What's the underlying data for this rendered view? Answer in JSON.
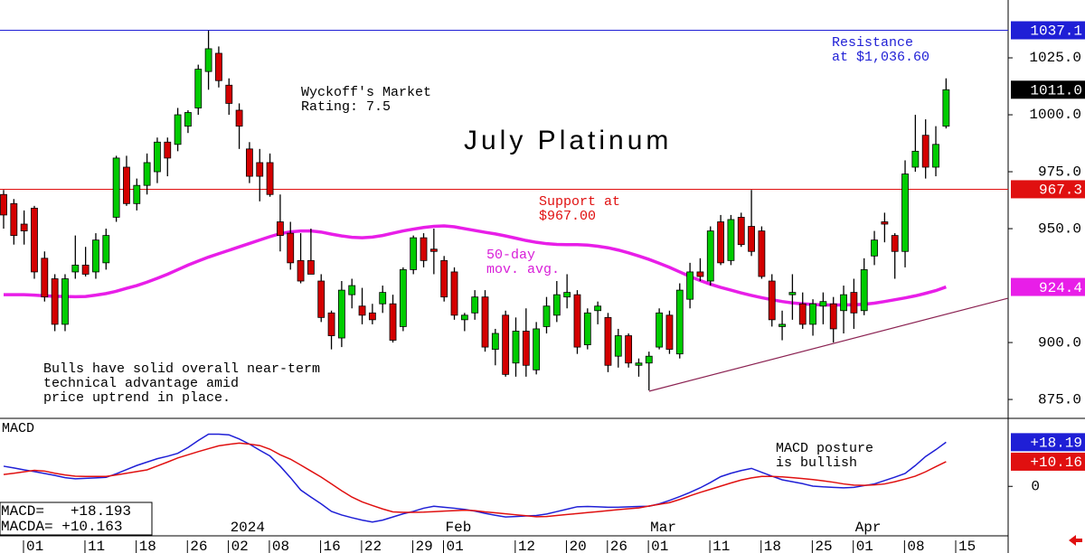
{
  "chart_data": [
    {
      "type": "candlestick",
      "title": "July Platinum",
      "categories": [
        null,
        null,
        null,
        "01",
        null,
        null,
        null,
        null,
        null,
        "11",
        null,
        null,
        null,
        null,
        "18",
        null,
        null,
        null,
        null,
        "26",
        null,
        null,
        null,
        "02",
        null,
        null,
        null,
        "08",
        null,
        null,
        null,
        null,
        "16",
        null,
        null,
        null,
        "22",
        null,
        null,
        null,
        null,
        "29",
        null,
        null,
        "01",
        null,
        null,
        null,
        null,
        null,
        null,
        "12",
        null,
        null,
        null,
        null,
        "20",
        null,
        null,
        null,
        "26",
        null,
        null,
        null,
        "01",
        null,
        null,
        null,
        null,
        null,
        "11",
        null,
        null,
        null,
        null,
        "18",
        null,
        null,
        null,
        null,
        "25",
        null,
        null,
        null,
        "01",
        null,
        null,
        null,
        null,
        "08",
        null,
        null,
        null,
        null,
        "15",
        null,
        null,
        null,
        null
      ],
      "month_labels": [
        null,
        null,
        null,
        null,
        null,
        null,
        null,
        null,
        null,
        null,
        null,
        null,
        null,
        null,
        null,
        null,
        null,
        null,
        null,
        null,
        null,
        null,
        null,
        "2024",
        null,
        null,
        null,
        null,
        null,
        null,
        null,
        null,
        null,
        null,
        null,
        null,
        null,
        null,
        null,
        null,
        null,
        null,
        null,
        null,
        "Feb",
        null,
        null,
        null,
        null,
        null,
        null,
        null,
        null,
        null,
        null,
        null,
        null,
        null,
        null,
        null,
        null,
        null,
        null,
        null,
        "Mar",
        null,
        null,
        null,
        null,
        null,
        null,
        null,
        null,
        null,
        null,
        null,
        null,
        null,
        null,
        null,
        null,
        null,
        null,
        null,
        "Apr",
        null,
        null,
        null,
        null,
        null,
        null,
        null,
        null,
        null,
        null,
        null,
        null,
        null,
        null
      ],
      "open": [
        965,
        961,
        952,
        959,
        937,
        928,
        908,
        931,
        934,
        931,
        935,
        955,
        977,
        961,
        969,
        975,
        988,
        987,
        995,
        1003,
        1019,
        1027,
        1013,
        1002,
        985,
        979,
        979,
        953,
        948,
        936,
        936,
        927,
        913,
        902,
        921,
        916,
        913,
        917,
        917,
        907,
        932,
        946,
        941,
        936,
        931,
        910,
        913,
        920,
        897,
        912,
        891,
        905,
        888,
        907,
        912,
        920,
        921,
        899,
        914,
        911,
        894,
        903,
        890,
        891,
        898,
        912,
        895,
        919,
        931,
        927,
        953,
        936,
        955,
        951,
        949,
        927,
        907,
        921,
        917,
        908,
        916,
        917,
        914,
        922,
        914,
        938,
        953,
        947,
        940,
        977,
        991,
        977,
        995,
        null,
        null,
        null,
        null,
        null,
        null
      ],
      "high": [
        967,
        963,
        958,
        960,
        940,
        930,
        930,
        947,
        942,
        948,
        950,
        982,
        982,
        972,
        983,
        990,
        990,
        1003,
        1002,
        1022,
        1037,
        1030,
        1016,
        1005,
        988,
        985,
        983,
        965,
        953,
        948,
        950,
        930,
        914,
        927,
        928,
        924,
        917,
        925,
        921,
        933,
        947,
        948,
        950,
        938,
        933,
        913,
        923,
        923,
        906,
        914,
        911,
        915,
        909,
        920,
        927,
        930,
        923,
        915,
        918,
        913,
        906,
        904,
        893,
        896,
        915,
        914,
        926,
        935,
        937,
        951,
        956,
        956,
        957,
        967,
        951,
        930,
        914,
        930,
        922,
        919,
        922,
        920,
        925,
        928,
        937,
        949,
        957,
        948,
        980,
        1000,
        998,
        995,
        1016,
        null,
        null,
        null,
        null,
        null,
        null
      ],
      "low": [
        950,
        943,
        943,
        928,
        918,
        905,
        905,
        928,
        929,
        928,
        932,
        953,
        960,
        958,
        965,
        970,
        973,
        984,
        992,
        1000,
        1011,
        1012,
        1000,
        985,
        970,
        962,
        964,
        940,
        932,
        926,
        930,
        909,
        897,
        898,
        915,
        908,
        908,
        913,
        900,
        905,
        930,
        933,
        930,
        918,
        910,
        905,
        910,
        896,
        890,
        885,
        885,
        885,
        886,
        904,
        909,
        915,
        895,
        897,
        908,
        887,
        889,
        889,
        885,
        879,
        897,
        895,
        893,
        915,
        927,
        925,
        934,
        934,
        942,
        938,
        928,
        907,
        901,
        910,
        906,
        903,
        908,
        900,
        904,
        906,
        912,
        934,
        944,
        928,
        933,
        975,
        972,
        973,
        994,
        null,
        null,
        null,
        null,
        null,
        null
      ],
      "close": [
        956,
        947,
        949,
        931,
        920,
        908,
        928,
        934,
        930,
        945,
        947,
        981,
        961,
        969,
        979,
        988,
        981,
        1000,
        1001,
        1020,
        1029,
        1015,
        1005,
        995,
        973,
        973,
        965,
        947,
        935,
        927,
        930,
        911,
        903,
        923,
        925,
        912,
        910,
        922,
        901,
        932,
        946,
        936,
        940,
        920,
        912,
        912,
        920,
        898,
        904,
        886,
        905,
        890,
        906,
        916,
        921,
        922,
        898,
        913,
        916,
        890,
        903,
        891,
        891,
        894,
        913,
        897,
        923,
        931,
        929,
        949,
        935,
        954,
        943,
        940,
        929,
        910,
        908,
        922,
        908,
        917,
        918,
        906,
        921,
        913,
        932,
        945,
        952,
        940,
        974,
        984,
        977,
        987,
        1011,
        null,
        null,
        null,
        null,
        null,
        null
      ],
      "up_color": "#00cc00",
      "down_color": "#d40000",
      "moving_average": {
        "color": "#e81ee8",
        "values": [
          921,
          921,
          921,
          920.8,
          920.5,
          920.3,
          920.2,
          920.1,
          920.2,
          920.8,
          921.5,
          922.5,
          923.8,
          925,
          926.5,
          928.2,
          930,
          932,
          934,
          935.8,
          937.5,
          939,
          940.5,
          942,
          943.5,
          945,
          946.5,
          947.8,
          948.6,
          949,
          949,
          948.5,
          947.6,
          946.8,
          946.2,
          946,
          946.3,
          947,
          948,
          949,
          949.8,
          950.5,
          951,
          951.2,
          950.8,
          950,
          949.2,
          948.4,
          947.7,
          946.8,
          945.8,
          944.8,
          944,
          943.4,
          943.1,
          943,
          943,
          942.8,
          942.3,
          941.6,
          940.6,
          939.4,
          938,
          936.5,
          934.8,
          933,
          931,
          929,
          927.2,
          925.6,
          924.2,
          923,
          921.8,
          920.7,
          919.7,
          918.8,
          918,
          917.4,
          917,
          916.7,
          916.5,
          916.5,
          916.5,
          916.6,
          916.8,
          917.3,
          918,
          918.8,
          919.6,
          920.5,
          921.6,
          922.8,
          924.4,
          null,
          null,
          null,
          null,
          null,
          null
        ]
      },
      "trendline": {
        "color": "#8b2252",
        "x": [
          63,
          98
        ],
        "values": [
          878.6,
          919.4
        ]
      },
      "levels": [
        {
          "value": 1037.1,
          "label": "1037.1",
          "color": "#1f1fd6",
          "line": true
        },
        {
          "value": 1011.0,
          "label": "1011.0",
          "color": "#000000",
          "line": false
        },
        {
          "value": 967.3,
          "label": "967.3",
          "color": "#e01010",
          "line": true
        },
        {
          "value": 924.4,
          "label": "924.4",
          "color": "#e81ee8",
          "line": false
        }
      ],
      "ylim": [
        866.7,
        1050.4
      ],
      "yticks": [
        {
          "value": 875,
          "label": "875.0"
        },
        {
          "value": 900,
          "label": "900.0"
        },
        {
          "value": 950,
          "label": "950.0"
        },
        {
          "value": 975,
          "label": "975.0"
        },
        {
          "value": 1000,
          "label": "1000.0"
        },
        {
          "value": 1025,
          "label": "1025.0"
        }
      ],
      "annotations": [
        {
          "lines": [
            "Resistance",
            "at $1,036.60"
          ],
          "color": "#1f1fd6"
        },
        {
          "lines": [
            "Wyckoff's Market",
            "Rating: 7.5"
          ],
          "color": "#000000"
        },
        {
          "lines": [
            "Support at",
            "$967.00"
          ],
          "color": "#e01010"
        },
        {
          "lines": [
            "50-day",
            "mov. avg."
          ],
          "color": "#d81ed8"
        },
        {
          "lines": [
            "Bulls have solid overall near-term",
            "technical advantage amid",
            "price uptrend in place."
          ],
          "color": "#000000"
        }
      ]
    },
    {
      "type": "line",
      "title": "MACD",
      "series": [
        {
          "color": "#1f1fd6",
          "values": [
            8.3,
            7.6,
            6.8,
            6.1,
            5.3,
            4.5,
            3.6,
            3.1,
            3.3,
            3.5,
            3.7,
            5.2,
            6.9,
            8.6,
            10.0,
            11.4,
            12.4,
            13.6,
            16.0,
            18.9,
            21.5,
            21.5,
            21.2,
            19.5,
            17.4,
            14.9,
            12.5,
            8.3,
            3.6,
            -1.5,
            -4.4,
            -7.2,
            -10.3,
            -11.8,
            -12.9,
            -13.9,
            -14.7,
            -13.9,
            -12.6,
            -11.3,
            -10.3,
            -9.0,
            -8.2,
            -8.6,
            -9.0,
            -9.5,
            -10.2,
            -11.1,
            -11.9,
            -12.6,
            -12.4,
            -12.2,
            -12.0,
            -11.4,
            -10.4,
            -9.4,
            -8.4,
            -8.3,
            -8.4,
            -8.6,
            -8.6,
            -8.4,
            -8.3,
            -8.2,
            -7.2,
            -5.8,
            -4.2,
            -2.5,
            -0.6,
            1.6,
            4.0,
            5.4,
            6.5,
            7.4,
            5.8,
            4.2,
            2.7,
            1.9,
            1.1,
            0.1,
            -0.2,
            -0.4,
            -0.6,
            -0.4,
            0.3,
            1.0,
            2.4,
            3.8,
            5.3,
            8.6,
            12.3,
            15.1,
            18.193,
            null,
            null,
            null,
            null,
            null,
            null
          ]
        },
        {
          "color": "#e01010",
          "values": [
            4.9,
            5.4,
            6.0,
            6.6,
            6.3,
            5.4,
            4.7,
            4.2,
            4.1,
            4.1,
            4.1,
            4.7,
            5.4,
            6.1,
            6.8,
            8.4,
            10.0,
            11.7,
            13.0,
            14.3,
            15.5,
            16.7,
            17.3,
            17.8,
            17.4,
            16.8,
            15.3,
            13.0,
            11.2,
            8.8,
            6.3,
            3.8,
            1.0,
            -1.8,
            -4.4,
            -6.4,
            -7.9,
            -9.3,
            -10.5,
            -10.7,
            -10.7,
            -10.6,
            -10.4,
            -10.2,
            -10.0,
            -9.8,
            -10.0,
            -10.5,
            -10.9,
            -11.3,
            -11.7,
            -12.1,
            -12.5,
            -12.4,
            -12.0,
            -11.6,
            -11.2,
            -10.8,
            -10.4,
            -10.0,
            -9.6,
            -9.2,
            -8.9,
            -8.1,
            -7.4,
            -6.7,
            -5.4,
            -3.9,
            -2.5,
            -1.2,
            0.1,
            1.4,
            2.6,
            3.5,
            4.1,
            4.1,
            3.9,
            3.6,
            3.2,
            2.8,
            2.3,
            1.7,
            1.0,
            0.5,
            0.4,
            0.6,
            1.0,
            1.9,
            3.0,
            4.2,
            6.0,
            8.1,
            10.163,
            null,
            null,
            null,
            null,
            null,
            null
          ]
        }
      ],
      "ylim": [
        -20,
        28
      ],
      "yticks": [
        0
      ],
      "markers": [
        {
          "value": 18.19,
          "label": "+18.19",
          "color": "#1f1fd6"
        },
        {
          "value": 10.16,
          "label": "+10.16",
          "color": "#e01010"
        }
      ],
      "readout": [
        "MACD=   +18.193",
        "MACDA= +10.163"
      ],
      "annotations": [
        {
          "lines": [
            "MACD posture",
            "is bullish"
          ],
          "color": "#000000"
        }
      ]
    }
  ]
}
